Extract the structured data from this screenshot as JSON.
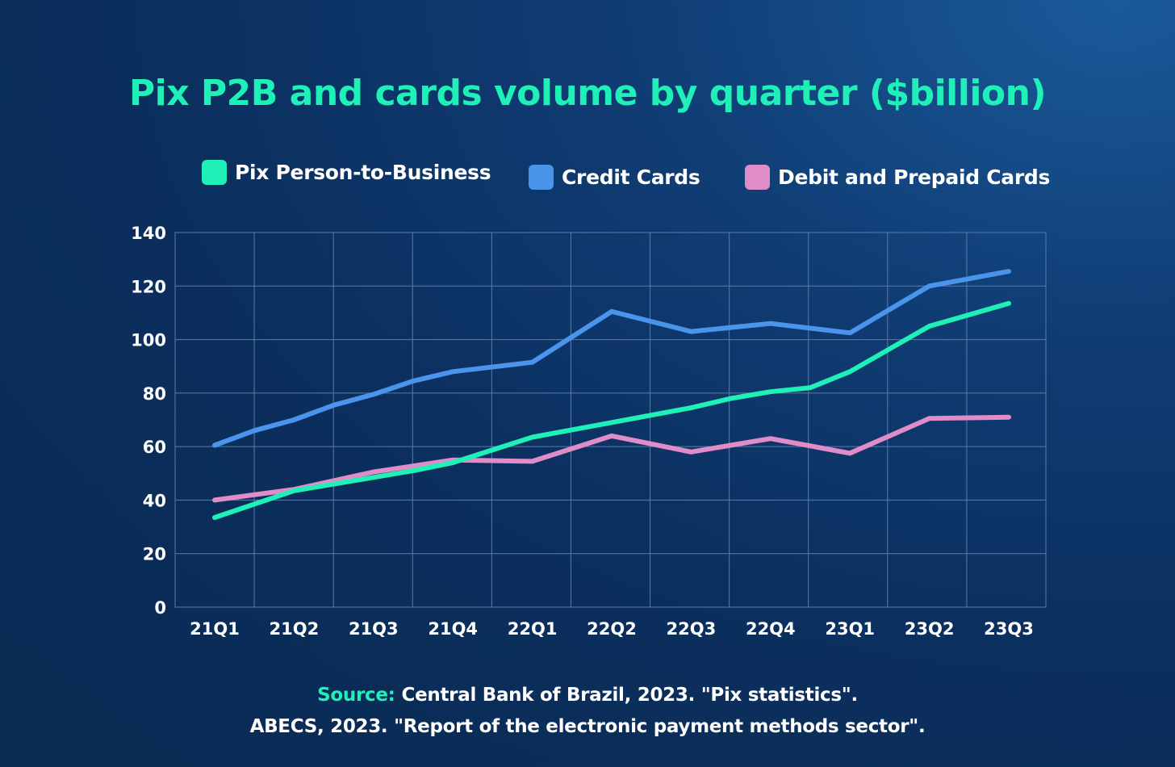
{
  "colors": {
    "pix": "#1ef0b8",
    "credit": "#4a94ec",
    "debit": "#e08cc8",
    "grid": "#5a7ca6"
  },
  "chart_data": {
    "type": "line",
    "title": "Pix P2B and cards volume by quarter ($billion)",
    "categories": [
      "21Q1",
      "21Q2",
      "21Q3",
      "21Q4",
      "22Q1",
      "22Q2",
      "22Q3",
      "22Q4",
      "23Q1",
      "23Q2",
      "23Q3"
    ],
    "x": [
      "21Q1",
      "21Q1.5",
      "21Q2",
      "21Q2.5",
      "21Q3",
      "21Q3.5",
      "21Q4",
      "21Q4.5",
      "22Q1",
      "22Q2",
      "22Q3",
      "22Q3.5",
      "22Q4",
      "22Q4.5",
      "23Q1",
      "23Q2",
      "23Q3"
    ],
    "series": [
      {
        "name": "Pix Person-to-Business",
        "color": "#1ef0b8",
        "points": [
          [
            0,
            33.5
          ],
          [
            0.5,
            38.5
          ],
          [
            1,
            43.5
          ],
          [
            1.5,
            46
          ],
          [
            2,
            48.5
          ],
          [
            2.5,
            51
          ],
          [
            3,
            54
          ],
          [
            4,
            63.5
          ],
          [
            5,
            69
          ],
          [
            6,
            74.5
          ],
          [
            6.5,
            78
          ],
          [
            7,
            80.5
          ],
          [
            7.5,
            82
          ],
          [
            8,
            88
          ],
          [
            9,
            105
          ],
          [
            10,
            113.5
          ]
        ]
      },
      {
        "name": "Credit Cards",
        "color": "#4a94ec",
        "points": [
          [
            0,
            60.5
          ],
          [
            0.5,
            66
          ],
          [
            1,
            70
          ],
          [
            1.5,
            75.5
          ],
          [
            2,
            79.5
          ],
          [
            2.5,
            84.5
          ],
          [
            3,
            88
          ],
          [
            4,
            91.5
          ],
          [
            5,
            110.5
          ],
          [
            6,
            103
          ],
          [
            7,
            106
          ],
          [
            8,
            102.5
          ],
          [
            9,
            120
          ],
          [
            10,
            125.5
          ]
        ]
      },
      {
        "name": "Debit and Prepaid Cards",
        "color": "#e08cc8",
        "points": [
          [
            0,
            40
          ],
          [
            1,
            44
          ],
          [
            2,
            50.5
          ],
          [
            3,
            55
          ],
          [
            4,
            54.5
          ],
          [
            5,
            64
          ],
          [
            6,
            58
          ],
          [
            7,
            63
          ],
          [
            8,
            57.5
          ],
          [
            9,
            70.5
          ],
          [
            10,
            71
          ]
        ]
      }
    ],
    "y_ticks": [
      "140",
      "120",
      "100",
      "80",
      "60",
      "40",
      "20",
      "0"
    ],
    "ylim": [
      0,
      140
    ],
    "grid": true,
    "legend": "top"
  },
  "legend": {
    "pix": "Pix Person-to-Business",
    "credit": "Credit Cards",
    "debit": "Debit and Prepaid Cards"
  },
  "source": {
    "label": "Source:",
    "line1": "Central Bank of Brazil, 2023. \"Pix statistics\".",
    "line2": "ABECS, 2023. \"Report of the electronic payment methods sector\"."
  }
}
